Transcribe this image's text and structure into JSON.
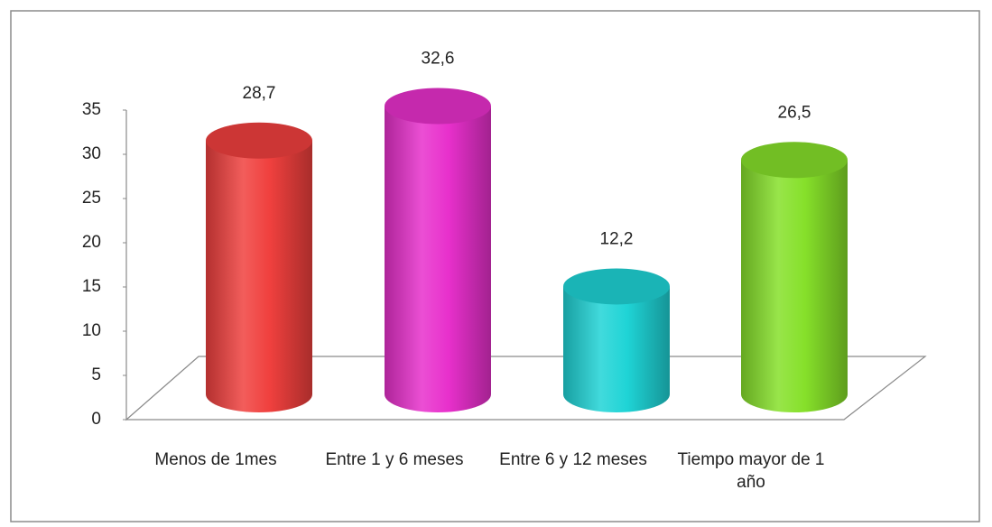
{
  "chart_data": {
    "type": "bar3d-cylinder",
    "categories": [
      "Menos de 1mes",
      "Entre 1  y 6 meses",
      "Entre 6 y 12 meses",
      "Tiempo mayor de 1 año"
    ],
    "values": [
      28.7,
      32.6,
      12.2,
      26.5
    ],
    "value_labels": [
      "28,7",
      "32,6",
      "12,2",
      "26,5"
    ],
    "colors": [
      "#f0403e",
      "#e830cc",
      "#1fd4d6",
      "#86e02a"
    ],
    "ylim": [
      0,
      35
    ],
    "yticks": [
      0,
      5,
      10,
      15,
      20,
      25,
      30,
      35
    ],
    "grid": false
  }
}
